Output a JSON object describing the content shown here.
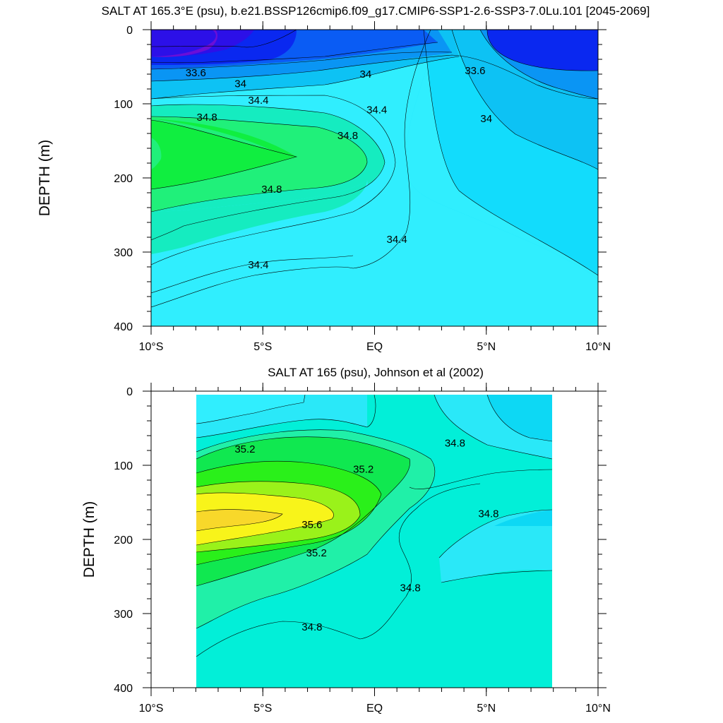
{
  "chart_data": [
    {
      "type": "contour",
      "title": "SALT AT 165.3°E (psu), b.e21.BSSP126cmip6.f09_g17.CMIP6-SSP1-2.6-SSP3-7.0Lu.101 [2045-2069]",
      "xlabel": "",
      "ylabel": "DEPTH (m)",
      "x_tick_labels": [
        "10°S",
        "5°S",
        "EQ",
        "5°N",
        "10°N"
      ],
      "x_tick_values": [
        -10,
        -5,
        0,
        5,
        10
      ],
      "y_tick_labels": [
        "0",
        "100",
        "200",
        "300",
        "400"
      ],
      "y_tick_values": [
        0,
        100,
        200,
        300,
        400
      ],
      "xlim": [
        -10,
        10
      ],
      "ylim": [
        400,
        0
      ],
      "contour_labels": [
        {
          "text": "33.6",
          "x": -8.0,
          "y": 58
        },
        {
          "text": "34",
          "x": -6.0,
          "y": 73
        },
        {
          "text": "34",
          "x": -0.4,
          "y": 60
        },
        {
          "text": "33.6",
          "x": 4.5,
          "y": 55
        },
        {
          "text": "34.4",
          "x": -5.2,
          "y": 95
        },
        {
          "text": "34.4",
          "x": 0.1,
          "y": 108
        },
        {
          "text": "34",
          "x": 5.0,
          "y": 120
        },
        {
          "text": "34.8",
          "x": -7.5,
          "y": 118
        },
        {
          "text": "34.8",
          "x": -1.2,
          "y": 143
        },
        {
          "text": "34.8",
          "x": -4.6,
          "y": 215
        },
        {
          "text": "34.4",
          "x": 1.0,
          "y": 283
        },
        {
          "text": "34.4",
          "x": -5.2,
          "y": 317
        }
      ],
      "levels": [
        33.2,
        33.4,
        33.6,
        33.8,
        34.0,
        34.2,
        34.4,
        34.6,
        34.8,
        35.0
      ],
      "colors": {
        "33.2": "#6a0fd8",
        "33.4": "#2c10e8",
        "33.6": "#0a28f0",
        "33.8": "#0a5cf4",
        "34.0": "#0a95f4",
        "34.2": "#0dc2f4",
        "34.4": "#12dcfc",
        "34.6": "#30eefe",
        "34.8": "#15ecc0",
        "35.0": "#20f07a",
        "35.2": "#10ee40"
      }
    },
    {
      "type": "contour",
      "title": "SALT AT 165 (psu), Johnson et al (2002)",
      "xlabel": "",
      "ylabel": "DEPTH (m)",
      "x_tick_labels": [
        "10°S",
        "5°S",
        "EQ",
        "5°N",
        "10°N"
      ],
      "x_tick_values": [
        -10,
        -5,
        0,
        5,
        10
      ],
      "y_tick_labels": [
        "0",
        "100",
        "200",
        "300",
        "400"
      ],
      "y_tick_values": [
        0,
        100,
        200,
        300,
        400
      ],
      "xlim": [
        -10,
        10
      ],
      "ylim": [
        400,
        0
      ],
      "data_extent_x": [
        -8,
        8
      ],
      "contour_labels": [
        {
          "text": "35.2",
          "x": -5.8,
          "y": 78
        },
        {
          "text": "35.2",
          "x": -0.5,
          "y": 105
        },
        {
          "text": "34.8",
          "x": 3.6,
          "y": 70
        },
        {
          "text": "35.6",
          "x": -2.8,
          "y": 180
        },
        {
          "text": "34.8",
          "x": 5.1,
          "y": 165
        },
        {
          "text": "35.2",
          "x": -2.6,
          "y": 218
        },
        {
          "text": "34.8",
          "x": 1.6,
          "y": 265
        },
        {
          "text": "34.8",
          "x": -2.8,
          "y": 318
        }
      ],
      "levels": [
        34.4,
        34.6,
        34.8,
        35.0,
        35.2,
        35.4,
        35.6,
        35.8
      ],
      "colors": {
        "34.4": "#0dd8f4",
        "34.6": "#2ae8f8",
        "34.8": "#02efd8",
        "35.0": "#20f0a8",
        "35.2": "#10e850",
        "35.4": "#2af01a",
        "35.6": "#9af21a",
        "35.8": "#f8f41a",
        "36.0": "#f8d82a"
      }
    }
  ]
}
